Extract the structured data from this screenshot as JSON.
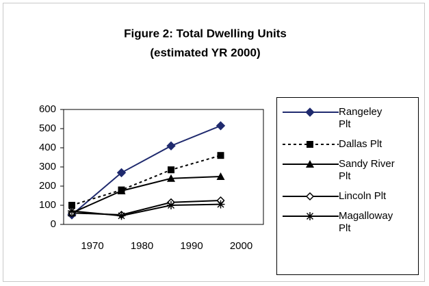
{
  "chart_data": {
    "type": "line",
    "title": "Figure 2: Total Dwelling Units",
    "subtitle": "(estimated YR 2000)",
    "categories": [
      "1970",
      "1980",
      "1990",
      "2000"
    ],
    "series": [
      {
        "name": "Rangeley Plt",
        "color": "#1f2a6e",
        "marker": "diamond",
        "line_style": "solid",
        "values": [
          50,
          270,
          410,
          515
        ]
      },
      {
        "name": "Dallas Plt",
        "color": "#000000",
        "marker": "square",
        "line_style": "dashed",
        "values": [
          100,
          180,
          285,
          360
        ]
      },
      {
        "name": "Sandy River Plt",
        "color": "#000000",
        "marker": "triangle",
        "line_style": "solid",
        "values": [
          60,
          175,
          240,
          250
        ]
      },
      {
        "name": "Lincoln Plt",
        "color": "#000000",
        "marker": "open-diamond",
        "line_style": "solid",
        "values": [
          60,
          50,
          115,
          125
        ]
      },
      {
        "name": "Magalloway Plt",
        "color": "#000000",
        "marker": "asterisk",
        "line_style": "solid",
        "values": [
          70,
          45,
          100,
          105
        ]
      }
    ],
    "ylim": [
      0,
      600
    ],
    "yticks": [
      0,
      100,
      200,
      300,
      400,
      500,
      600
    ],
    "grid": false
  }
}
